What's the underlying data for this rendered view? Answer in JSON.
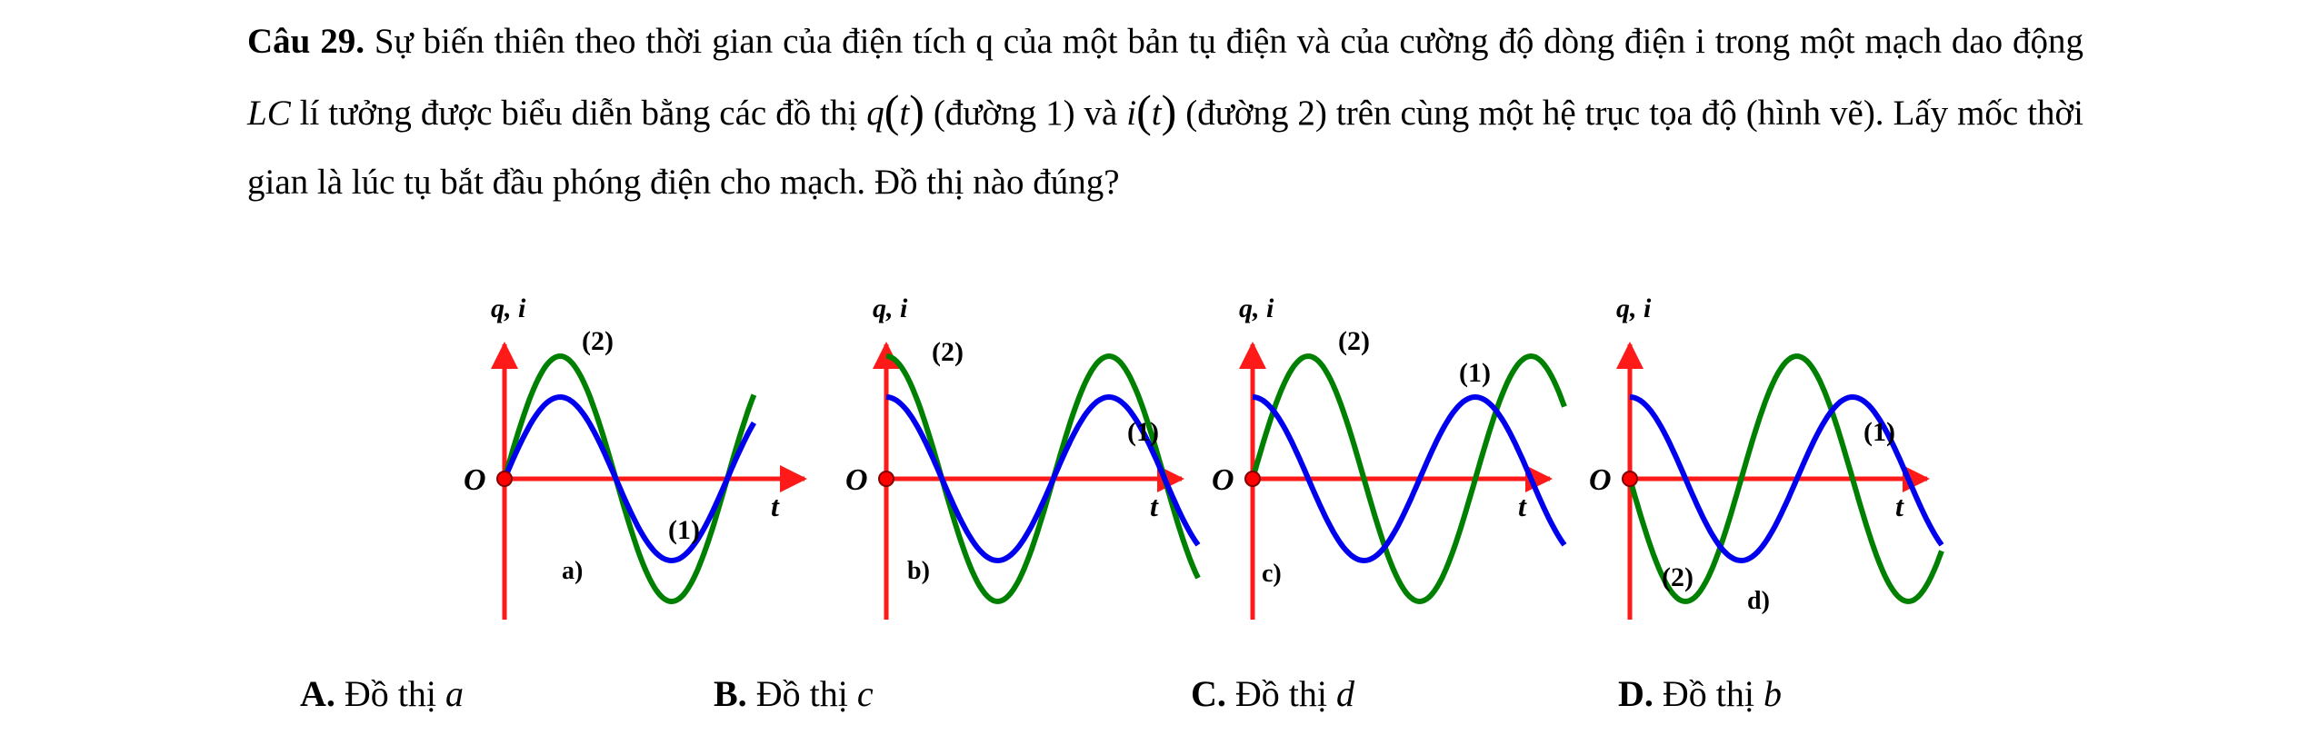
{
  "question": {
    "label": "Câu 29.",
    "text_1": " Sự biến thiên theo thời gian của điện tích q của một bản tụ điện và của cường độ dòng điện i trong một mạch dao động ",
    "lc": "LC",
    "text_2": " lí tưởng được biểu diễn bằng các đồ thị ",
    "q_fn": "q",
    "t_var": "t",
    "text_3": " (đường 1) và ",
    "i_fn": "i",
    "text_4": " (đường 2) trên cùng một hệ trục tọa độ (hình vẽ). Lấy mốc thời gian là lúc tụ bắt đầu phóng điện cho mạch. Đồ thị nào đúng?"
  },
  "graphs": {
    "a": {
      "ylabel": "q, i",
      "xlabel": "t",
      "origin": "O",
      "label": "a)",
      "curve1_label": "(1)",
      "curve2_label": "(2)"
    },
    "b": {
      "ylabel": "q, i",
      "xlabel": "t",
      "origin": "O",
      "label": "b)",
      "curve1_label": "(1)",
      "curve2_label": "(2)"
    },
    "c": {
      "ylabel": "q, i",
      "xlabel": "t",
      "origin": "O",
      "label": "c)",
      "curve1_label": "(1)",
      "curve2_label": "(2)"
    },
    "d": {
      "ylabel": "q, i",
      "xlabel": "t",
      "origin": "O",
      "label": "d)",
      "curve1_label": "(1)",
      "curve2_label": "(2)"
    }
  },
  "colors": {
    "axis": "#ff1a1a",
    "curve1": "#0000ee",
    "curve2": "#008000",
    "origin_dot": "#ff0000"
  },
  "options": [
    {
      "letter": "A.",
      "text": " Đồ thị ",
      "var": "a"
    },
    {
      "letter": "B.",
      "text": " Đồ thị ",
      "var": "c"
    },
    {
      "letter": "C.",
      "text": " Đồ thị ",
      "var": "d"
    },
    {
      "letter": "D.",
      "text": " Đồ thị ",
      "var": "b"
    }
  ]
}
